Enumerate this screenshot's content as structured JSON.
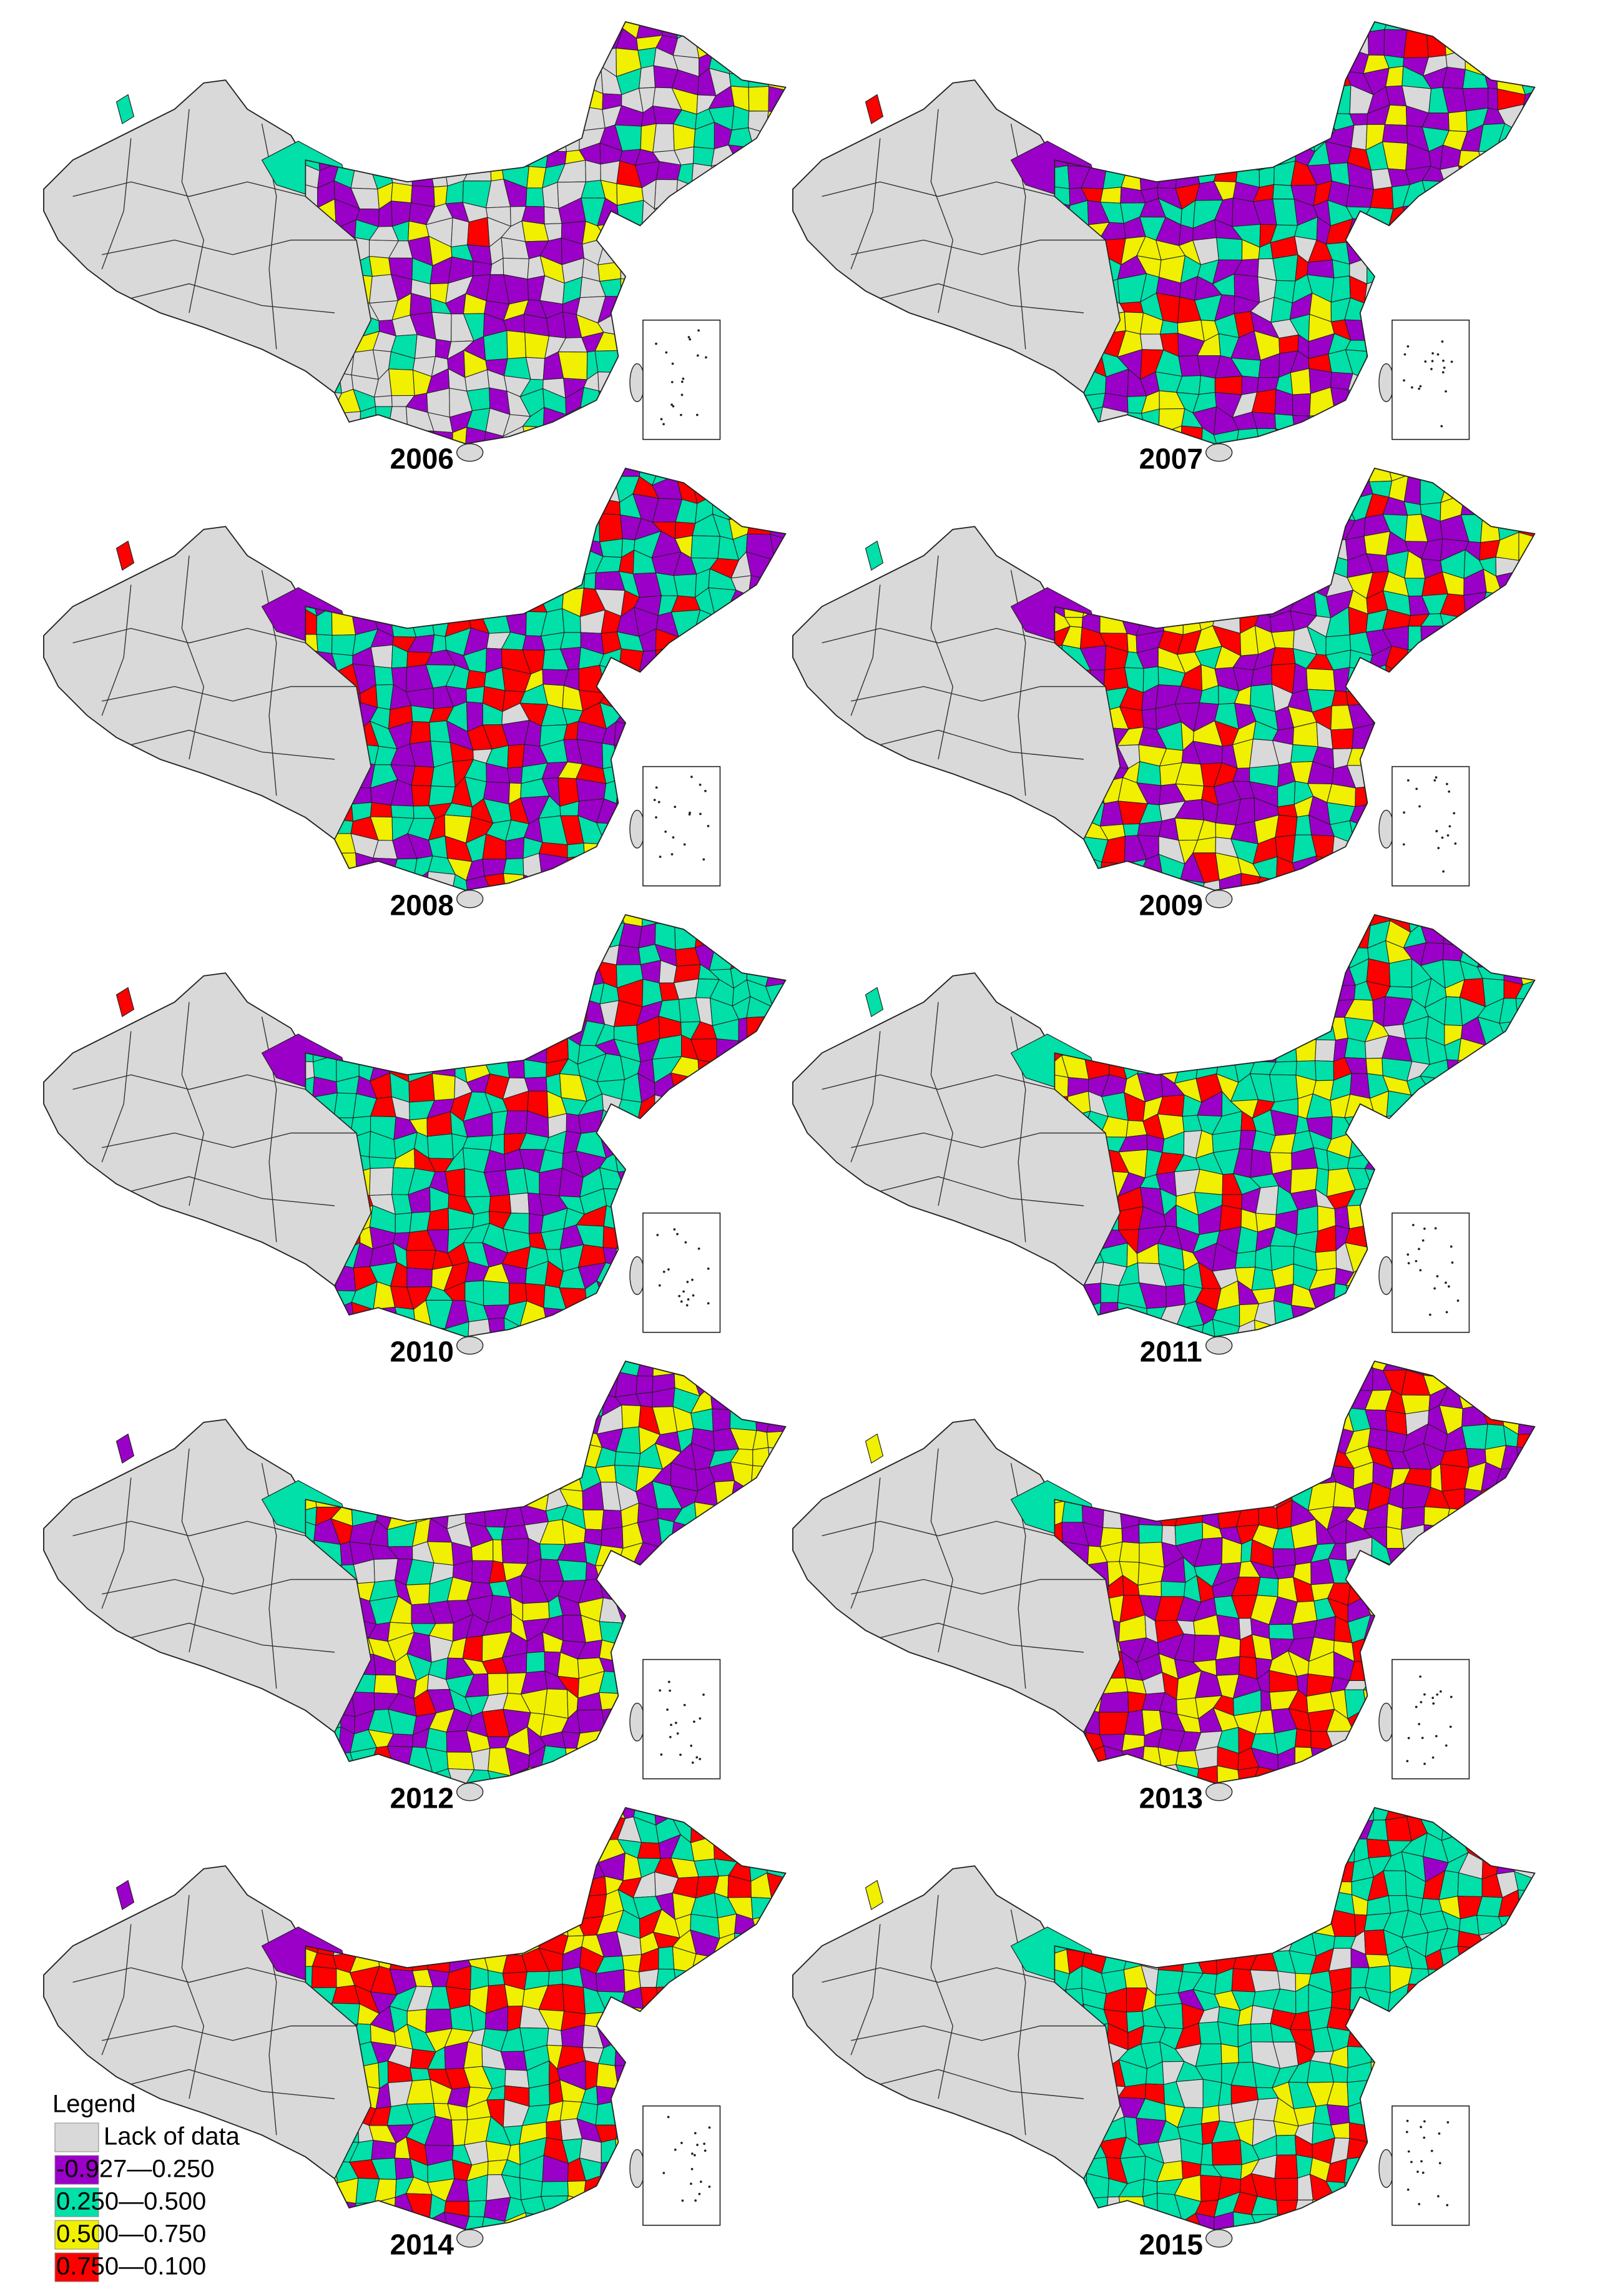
{
  "panels": [
    {
      "year": "2006"
    },
    {
      "year": "2007"
    },
    {
      "year": "2008"
    },
    {
      "year": "2009"
    },
    {
      "year": "2010"
    },
    {
      "year": "2011"
    },
    {
      "year": "2012"
    },
    {
      "year": "2013"
    },
    {
      "year": "2014"
    },
    {
      "year": "2015"
    }
  ],
  "legend": {
    "title": "Legend",
    "items": [
      {
        "label": "Lack of data",
        "color": "#d9d9d9"
      },
      {
        "label": "-0.927—0.250",
        "color": "#9b00c8"
      },
      {
        "label": "0.250—0.500",
        "color": "#00e0a8"
      },
      {
        "label": "0.500—0.750",
        "color": "#f0f000"
      },
      {
        "label": "0.750—0.100",
        "color": "#ff0000"
      }
    ]
  }
}
